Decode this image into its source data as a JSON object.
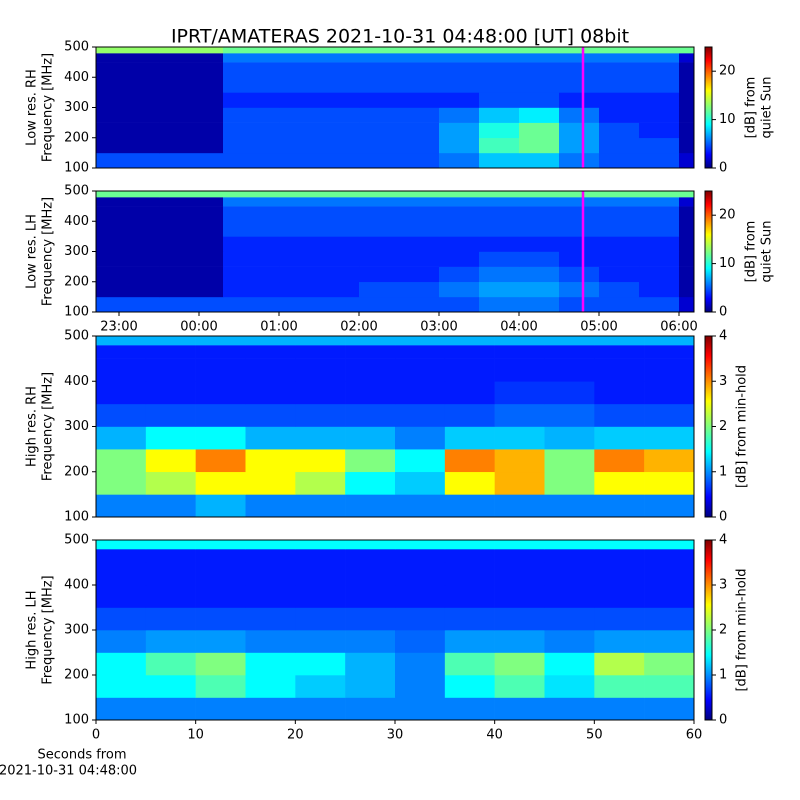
{
  "chart_data": [
    {
      "type": "heatmap",
      "title": "IPRT/AMATERAS 2021-10-31 04:48:00 [UT]   08bit",
      "ylabel": [
        "Low res. RH",
        "Frequency [MHz]"
      ],
      "clabel": [
        "[dB] from",
        "quiet Sun"
      ],
      "xlim": [
        22.7125,
        30.1875
      ],
      "ylim": [
        100,
        500
      ],
      "yticks": [
        100,
        200,
        300,
        400,
        500
      ],
      "clim": [
        0,
        25
      ],
      "cticks": [
        0,
        10,
        20
      ],
      "x_bins": [
        22.7125,
        23.5,
        24.3,
        25,
        26,
        27,
        27.5,
        28,
        28.5,
        29,
        29.5,
        30,
        30.1875
      ],
      "y_bins": [
        100,
        150,
        200,
        250,
        300,
        350,
        400,
        450,
        480,
        500
      ],
      "z": [
        [
          5,
          5,
          5,
          5,
          5,
          6,
          8,
          8,
          6,
          5,
          5,
          2
        ],
        [
          1,
          1,
          5,
          5,
          5,
          7,
          11,
          12,
          7,
          5,
          5,
          1
        ],
        [
          1,
          1,
          5,
          5,
          5,
          7,
          10,
          12,
          7,
          5,
          4,
          1
        ],
        [
          1,
          1,
          5,
          5,
          5,
          6,
          8,
          9,
          6,
          4,
          4,
          1
        ],
        [
          1,
          1,
          4,
          4,
          4,
          4,
          5,
          5,
          4,
          4,
          4,
          1
        ],
        [
          1,
          1,
          5,
          5,
          5,
          5,
          5,
          5,
          5,
          5,
          5,
          1
        ],
        [
          1,
          1,
          5,
          5,
          5,
          5,
          5,
          5,
          5,
          5,
          5,
          1
        ],
        [
          1,
          1,
          6,
          6,
          6,
          6,
          6,
          6,
          6,
          6,
          6,
          2
        ],
        [
          13,
          13,
          12,
          12,
          12,
          12,
          12,
          12,
          12,
          12,
          12,
          12
        ]
      ],
      "marker_x": 28.8,
      "marker_color": "#ff00ff"
    },
    {
      "type": "heatmap",
      "ylabel": [
        "Low res. LH",
        "Frequency [MHz]"
      ],
      "clabel": [
        "[dB] from",
        "quiet Sun"
      ],
      "xlim": [
        22.7125,
        30.1875
      ],
      "ylim": [
        100,
        500
      ],
      "yticks": [
        100,
        200,
        300,
        400,
        500
      ],
      "xticks": [
        {
          "value": 23,
          "label": "23:00"
        },
        {
          "value": 24,
          "label": "00:00"
        },
        {
          "value": 25,
          "label": "01:00"
        },
        {
          "value": 26,
          "label": "02:00"
        },
        {
          "value": 27,
          "label": "03:00"
        },
        {
          "value": 28,
          "label": "04:00"
        },
        {
          "value": 29,
          "label": "05:00"
        },
        {
          "value": 30,
          "label": "06:00"
        }
      ],
      "clim": [
        0,
        25
      ],
      "cticks": [
        0,
        10,
        20
      ],
      "x_bins": [
        22.7125,
        23.5,
        24.3,
        25,
        26,
        27,
        27.5,
        28,
        28.5,
        29,
        29.5,
        30,
        30.1875
      ],
      "y_bins": [
        100,
        150,
        200,
        250,
        300,
        350,
        400,
        450,
        480,
        500
      ],
      "z": [
        [
          5,
          5,
          5,
          5,
          5,
          5,
          6,
          6,
          5,
          5,
          5,
          2
        ],
        [
          1,
          1,
          4,
          4,
          5,
          6,
          7,
          7,
          6,
          5,
          4,
          1
        ],
        [
          1,
          1,
          4,
          4,
          4,
          5,
          6,
          6,
          5,
          4,
          4,
          1
        ],
        [
          1,
          1,
          4,
          4,
          4,
          4,
          5,
          5,
          4,
          4,
          4,
          1
        ],
        [
          1,
          1,
          4,
          4,
          4,
          4,
          4,
          4,
          4,
          4,
          4,
          1
        ],
        [
          1,
          1,
          5,
          5,
          5,
          5,
          5,
          5,
          5,
          5,
          5,
          1
        ],
        [
          1,
          1,
          5,
          5,
          5,
          5,
          5,
          5,
          5,
          5,
          5,
          1
        ],
        [
          1,
          1,
          6,
          6,
          6,
          6,
          6,
          6,
          6,
          6,
          6,
          2
        ],
        [
          12,
          12,
          12,
          12,
          12,
          12,
          12,
          12,
          12,
          12,
          12,
          12
        ]
      ],
      "marker_x": 28.8,
      "marker_color": "#ff00ff"
    },
    {
      "type": "heatmap",
      "ylabel": [
        "High res. RH",
        "Frequency [MHz]"
      ],
      "clabel": [
        "[dB] from min-hold"
      ],
      "xlim": [
        0,
        60
      ],
      "ylim": [
        100,
        500
      ],
      "yticks": [
        100,
        200,
        300,
        400,
        500
      ],
      "clim": [
        0,
        4
      ],
      "cticks": [
        0,
        1,
        2,
        3,
        4
      ],
      "x_bins": [
        0,
        5,
        10,
        15,
        20,
        25,
        30,
        35,
        40,
        45,
        50,
        55,
        60
      ],
      "y_bins": [
        100,
        150,
        200,
        250,
        300,
        350,
        400,
        450,
        480,
        500
      ],
      "z": [
        [
          1,
          1,
          1.2,
          1,
          1,
          1,
          1,
          1,
          1,
          1,
          1,
          1
        ],
        [
          2,
          2.2,
          2.5,
          2.5,
          2.2,
          1.5,
          1.3,
          2.5,
          2.8,
          2,
          2.5,
          2.5
        ],
        [
          2,
          2.5,
          3,
          2.5,
          2.5,
          2,
          1.5,
          3,
          2.8,
          2,
          3,
          2.8
        ],
        [
          1.2,
          1.5,
          1.5,
          1.2,
          1.2,
          1.2,
          1,
          1.3,
          1.3,
          1.2,
          1.3,
          1.3
        ],
        [
          0.8,
          0.8,
          0.8,
          0.8,
          0.8,
          0.8,
          0.8,
          0.8,
          0.9,
          0.9,
          0.8,
          0.8
        ],
        [
          0.6,
          0.6,
          0.6,
          0.6,
          0.6,
          0.6,
          0.6,
          0.6,
          0.7,
          0.7,
          0.6,
          0.6
        ],
        [
          0.6,
          0.6,
          0.6,
          0.6,
          0.6,
          0.6,
          0.6,
          0.6,
          0.6,
          0.6,
          0.6,
          0.6
        ],
        [
          0.6,
          0.6,
          0.6,
          0.6,
          0.6,
          0.6,
          0.6,
          0.6,
          0.6,
          0.6,
          0.6,
          0.6
        ],
        [
          1.2,
          1.2,
          1.2,
          1.2,
          1.2,
          1.2,
          1.2,
          1.2,
          1.2,
          1.2,
          1.2,
          1.2
        ]
      ]
    },
    {
      "type": "heatmap",
      "ylabel": [
        "High res. LH",
        "Frequency [MHz]"
      ],
      "clabel": [
        "[dB] from min-hold"
      ],
      "xlabel": [
        "Seconds from",
        "2021-10-31 04:48:00"
      ],
      "xlim": [
        0,
        60
      ],
      "ylim": [
        100,
        500
      ],
      "yticks": [
        100,
        200,
        300,
        400,
        500
      ],
      "xticks": [
        0,
        10,
        20,
        30,
        40,
        50,
        60
      ],
      "clim": [
        0,
        4
      ],
      "cticks": [
        0,
        1,
        2,
        3,
        4
      ],
      "x_bins": [
        0,
        5,
        10,
        15,
        20,
        25,
        30,
        35,
        40,
        45,
        50,
        55,
        60
      ],
      "y_bins": [
        100,
        150,
        200,
        250,
        300,
        350,
        400,
        450,
        480,
        500
      ],
      "z": [
        [
          1,
          1,
          1,
          1,
          1,
          1,
          1,
          1,
          1,
          1,
          1,
          1
        ],
        [
          1.5,
          1.5,
          1.8,
          1.5,
          1.3,
          1.2,
          1,
          1.5,
          1.8,
          1.4,
          1.8,
          1.8
        ],
        [
          1.5,
          1.8,
          2,
          1.5,
          1.5,
          1.2,
          1,
          1.8,
          2,
          1.5,
          2.2,
          2
        ],
        [
          1,
          1.1,
          1.1,
          1,
          1,
          1,
          0.9,
          1.1,
          1.1,
          1,
          1.1,
          1.1
        ],
        [
          0.8,
          0.8,
          0.8,
          0.8,
          0.8,
          0.8,
          0.8,
          0.8,
          0.8,
          0.8,
          0.8,
          0.8
        ],
        [
          0.6,
          0.6,
          0.6,
          0.6,
          0.6,
          0.6,
          0.6,
          0.6,
          0.6,
          0.6,
          0.6,
          0.6
        ],
        [
          0.6,
          0.6,
          0.6,
          0.6,
          0.6,
          0.6,
          0.6,
          0.6,
          0.6,
          0.6,
          0.6,
          0.6
        ],
        [
          0.6,
          0.6,
          0.6,
          0.6,
          0.6,
          0.6,
          0.6,
          0.6,
          0.6,
          0.6,
          0.6,
          0.6
        ],
        [
          1.5,
          1.5,
          1.5,
          1.5,
          1.5,
          1.5,
          1.5,
          1.5,
          1.5,
          1.5,
          1.5,
          1.5
        ]
      ]
    }
  ]
}
